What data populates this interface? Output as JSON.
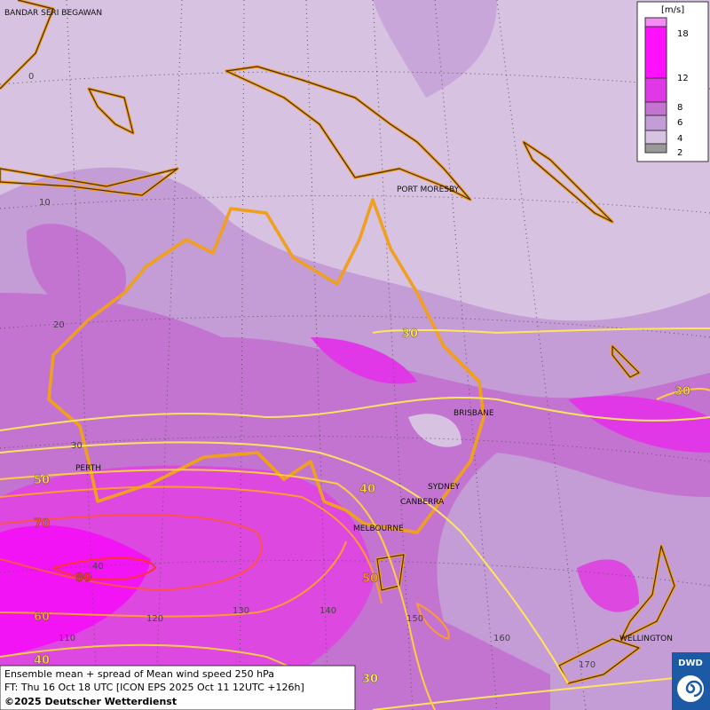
{
  "legend": {
    "unit": "[m/s]",
    "labels": [
      "18",
      "12",
      "8",
      "6",
      "4",
      "2"
    ]
  },
  "cities": [
    "BANDAR SERI BEGAWAN",
    "PORT MORESBY",
    "BRISBANE",
    "PERTH",
    "SYDNEY",
    "CANBERRA",
    "MELBOURNE",
    "WELLINGTON"
  ],
  "latitude_labels": [
    "0",
    "10",
    "20",
    "30",
    "40"
  ],
  "longitude_labels": [
    "110",
    "120",
    "130",
    "140",
    "150",
    "160",
    "170"
  ],
  "contour_labels": [
    "30",
    "30",
    "40",
    "50",
    "50",
    "70",
    "80",
    "60",
    "40",
    "30"
  ],
  "footer": {
    "line1": "Ensemble mean + spread of Mean wind speed 250 hPa",
    "line2": "FT: Thu 16 Oct 18 UTC [ICON EPS 2025 Oct 11 12UTC +126h]",
    "line3": "©2025 Deutscher Wetterdienst"
  },
  "logo": "DWD"
}
